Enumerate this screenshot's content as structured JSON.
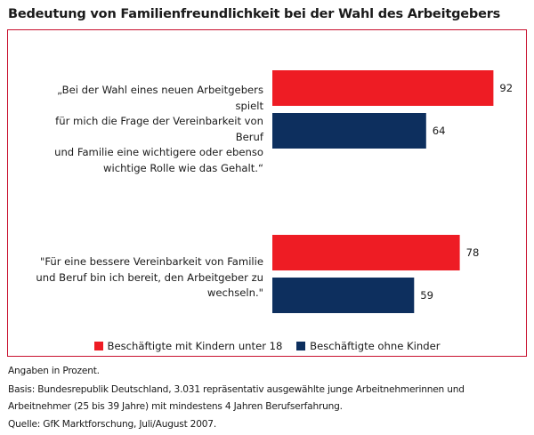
{
  "title": "Bedeutung von Familienfreundlichkeit bei der Wahl des Arbeitgebers",
  "colors": {
    "frame": "#c8102e",
    "series_with_children": "#ee1c24",
    "series_without_children": "#0d2f5e"
  },
  "chart_data": {
    "type": "bar",
    "orientation": "horizontal",
    "categories": [
      "„Bei der Wahl eines neuen Arbeitgebers spielt für mich die Frage der Vereinbarkeit von Beruf und Familie eine wichtigere oder ebenso wichtige Rolle wie das Gehalt.“",
      "\"Für eine bessere Vereinbarkeit von Familie und Beruf bin ich bereit, den Arbeitgeber zu wechseln.\""
    ],
    "category_lines": [
      [
        "„Bei der Wahl eines neuen Arbeitgebers spielt",
        "für mich die Frage der Vereinbarkeit von Beruf",
        "und Familie eine wichtigere oder ebenso",
        "wichtige Rolle wie das Gehalt.“"
      ],
      [
        "\"Für eine bessere Vereinbarkeit von Familie",
        "und Beruf bin ich bereit, den Arbeitgeber zu",
        "wechseln.\""
      ]
    ],
    "series": [
      {
        "name": "Beschäftigte mit Kindern unter 18",
        "color": "#ee1c24",
        "values": [
          92,
          78
        ]
      },
      {
        "name": "Beschäftigte ohne Kinder",
        "color": "#0d2f5e",
        "values": [
          64,
          59
        ]
      }
    ],
    "xlim": [
      0,
      100
    ],
    "grid": false,
    "legend_position": "bottom-center",
    "unit": "Prozent"
  },
  "footnotes": [
    "Angaben in Prozent.",
    "Basis: Bundesrepublik Deutschland, 3.031 repräsentativ ausgewählte junge Arbeitnehmerinnen und",
    "Arbeitnehmer (25 bis 39 Jahre) mit mindestens 4 Jahren Berufserfahrung.",
    "Quelle: GfK Marktforschung, Juli/August 2007."
  ]
}
